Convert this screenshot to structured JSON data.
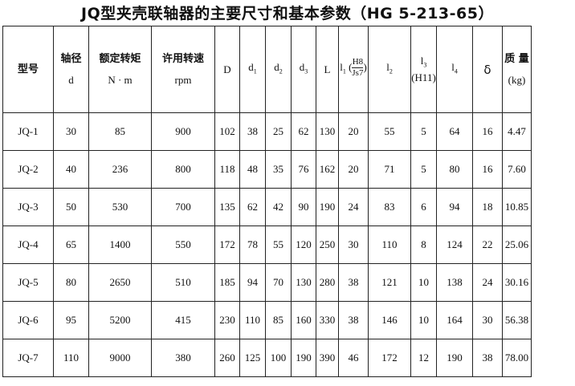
{
  "title": "JQ型夹壳联轴器的主要尺寸和基本参数（HG 5-213-65）",
  "headers": {
    "model": "型号",
    "shaft_cn": "轴径",
    "shaft_sym": "d",
    "torque_cn": "额定转矩",
    "torque_unit": "N · m",
    "speed_cn": "许用转速",
    "speed_unit": "rpm",
    "D": "D",
    "d1": "d",
    "d1_sub": "1",
    "d2": "d",
    "d2_sub": "2",
    "d3": "d",
    "d3_sub": "3",
    "L": "L",
    "l1": "l",
    "l1_sub": "1",
    "l1_num": "H8",
    "l1_den": "Js7",
    "l2": "l",
    "l2_sub": "2",
    "l3": "l",
    "l3_sub": "3",
    "l3_tol": "(H11)",
    "l4": "l",
    "l4_sub": "4",
    "delta": "δ",
    "mass_cn": "质 量",
    "mass_unit": "(kg)"
  },
  "rows": [
    [
      "JQ-1",
      "30",
      "85",
      "900",
      "102",
      "38",
      "25",
      "62",
      "130",
      "20",
      "55",
      "5",
      "64",
      "16",
      "4.47"
    ],
    [
      "JQ-2",
      "40",
      "236",
      "800",
      "118",
      "48",
      "35",
      "76",
      "162",
      "20",
      "71",
      "5",
      "80",
      "16",
      "7.60"
    ],
    [
      "JQ-3",
      "50",
      "530",
      "700",
      "135",
      "62",
      "42",
      "90",
      "190",
      "24",
      "83",
      "6",
      "94",
      "18",
      "10.85"
    ],
    [
      "JQ-4",
      "65",
      "1400",
      "550",
      "172",
      "78",
      "55",
      "120",
      "250",
      "30",
      "110",
      "8",
      "124",
      "22",
      "25.06"
    ],
    [
      "JQ-5",
      "80",
      "2650",
      "510",
      "185",
      "94",
      "70",
      "130",
      "280",
      "38",
      "121",
      "10",
      "138",
      "24",
      "30.16"
    ],
    [
      "JQ-6",
      "95",
      "5200",
      "415",
      "230",
      "110",
      "85",
      "160",
      "330",
      "38",
      "146",
      "10",
      "164",
      "30",
      "56.38"
    ],
    [
      "JQ-7",
      "110",
      "9000",
      "380",
      "260",
      "125",
      "100",
      "190",
      "390",
      "46",
      "172",
      "12",
      "190",
      "38",
      "78.00"
    ]
  ]
}
